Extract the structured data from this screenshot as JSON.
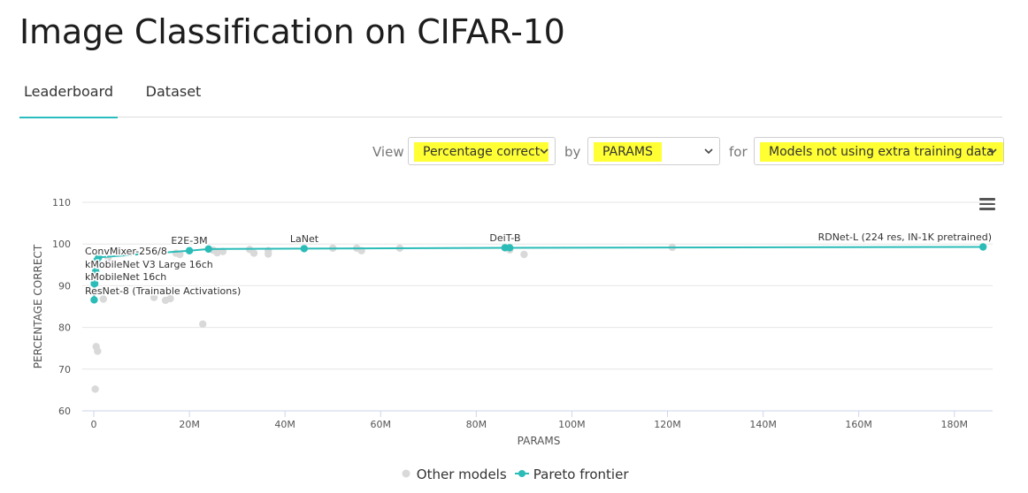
{
  "page": {
    "title": "Image Classification on CIFAR-10",
    "tabs": [
      {
        "label": "Leaderboard",
        "active": true
      },
      {
        "label": "Dataset",
        "active": false
      }
    ]
  },
  "controls": {
    "view_label": "View",
    "view_value": "Percentage correct",
    "by_label": "by",
    "by_value": "PARAMS",
    "for_label": "for",
    "for_value": "Models not using extra training data",
    "highlight_color": "#ffff33"
  },
  "legend": {
    "other": "Other models",
    "pareto": "Pareto frontier"
  },
  "chart_data": {
    "type": "scatter",
    "title": "",
    "xlabel": "PARAMS",
    "ylabel": "PERCENTAGE CORRECT",
    "xlim": [
      0,
      188
    ],
    "ylim": [
      60,
      110
    ],
    "x_ticks": [
      0,
      20,
      40,
      60,
      80,
      100,
      120,
      140,
      160,
      180
    ],
    "x_tick_labels": [
      "0",
      "20M",
      "40M",
      "60M",
      "80M",
      "100M",
      "120M",
      "140M",
      "160M",
      "180M"
    ],
    "y_ticks": [
      60,
      70,
      80,
      90,
      100,
      110
    ],
    "y_tick_labels": [
      "60",
      "70",
      "80",
      "90",
      "100",
      "110"
    ],
    "grid": "horizontal",
    "legend_position": "bottom",
    "colors": {
      "other": "#d9d9d9",
      "pareto": "#2bbcb8"
    },
    "series": [
      {
        "name": "Other models",
        "points": [
          [
            0.3,
            65.2
          ],
          [
            0.5,
            75.4
          ],
          [
            0.8,
            74.3
          ],
          [
            0.4,
            92.6
          ],
          [
            2.0,
            86.8
          ],
          [
            3.0,
            96.5
          ],
          [
            12.6,
            87.2
          ],
          [
            15.0,
            86.5
          ],
          [
            16.0,
            86.9
          ],
          [
            17.2,
            97.8
          ],
          [
            18.0,
            97.5
          ],
          [
            22.8,
            80.8
          ],
          [
            25.0,
            98.5
          ],
          [
            25.8,
            97.9
          ],
          [
            27.0,
            98.2
          ],
          [
            32.6,
            98.7
          ],
          [
            33.5,
            97.8
          ],
          [
            36.5,
            98.4
          ],
          [
            36.5,
            97.6
          ],
          [
            50.0,
            99.0
          ],
          [
            55.0,
            99.0
          ],
          [
            56.0,
            98.4
          ],
          [
            64.0,
            99.0
          ],
          [
            87.0,
            98.6
          ],
          [
            90.0,
            97.5
          ],
          [
            121.0,
            99.2
          ]
        ]
      },
      {
        "name": "Pareto frontier",
        "points": [
          [
            0.08,
            86.6
          ],
          [
            0.1,
            90.5
          ],
          [
            0.2,
            90.5
          ],
          [
            0.4,
            93.5
          ],
          [
            0.6,
            96.0
          ],
          [
            1.0,
            96.8
          ],
          [
            20.0,
            98.4
          ],
          [
            24.0,
            98.8
          ],
          [
            44.0,
            98.9
          ],
          [
            86.0,
            99.1
          ],
          [
            87.0,
            99.1
          ],
          [
            186.0,
            99.3
          ]
        ],
        "annotations": [
          {
            "text": "ConvMixer-256/8",
            "x": 0.6,
            "y": 96.0
          },
          {
            "text": "kMobileNet V3 Large 16ch",
            "x": 0.4,
            "y": 93.5
          },
          {
            "text": "kMobileNet 16ch",
            "x": 0.2,
            "y": 90.5
          },
          {
            "text": "ResNet-8 (Trainable Activations)",
            "x": 0.08,
            "y": 86.6
          },
          {
            "text": "E2E-3M",
            "x": 20.0,
            "y": 98.4
          },
          {
            "text": "LaNet",
            "x": 44.0,
            "y": 98.9
          },
          {
            "text": "DeiT-B",
            "x": 86.0,
            "y": 99.1
          },
          {
            "text": "RDNet-L (224 res, IN-1K pretrained)",
            "x": 186.0,
            "y": 99.3
          }
        ]
      }
    ]
  }
}
